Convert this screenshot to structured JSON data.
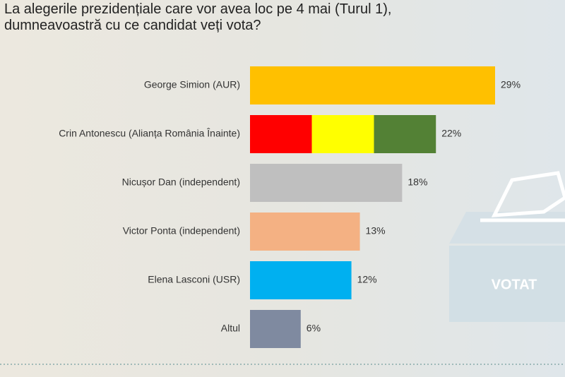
{
  "chart_data": {
    "type": "bar",
    "orientation": "horizontal",
    "title": "La alegerile prezidențiale care vor avea loc pe 4 mai (Turul 1), dumneavoastră cu ce candidat veți vota?",
    "categories": [
      "George Simion (AUR)",
      "Crin Antonescu (Alianța România Înainte)",
      "Nicușor Dan (independent)",
      "Victor Ponta (independent)",
      "Elena Lasconi (USR)",
      "Altul"
    ],
    "values": [
      29,
      22,
      18,
      13,
      12,
      6
    ],
    "value_labels": [
      "29%",
      "22%",
      "18%",
      "13%",
      "12%",
      "6%"
    ],
    "colors": [
      "#ffc000",
      [
        "#ff0000",
        "#ffff00",
        "#538135"
      ],
      "#bfbfbf",
      "#f4b183",
      "#00b0f0",
      "#7f8aa0"
    ]
  },
  "annotation": "VOTAT"
}
